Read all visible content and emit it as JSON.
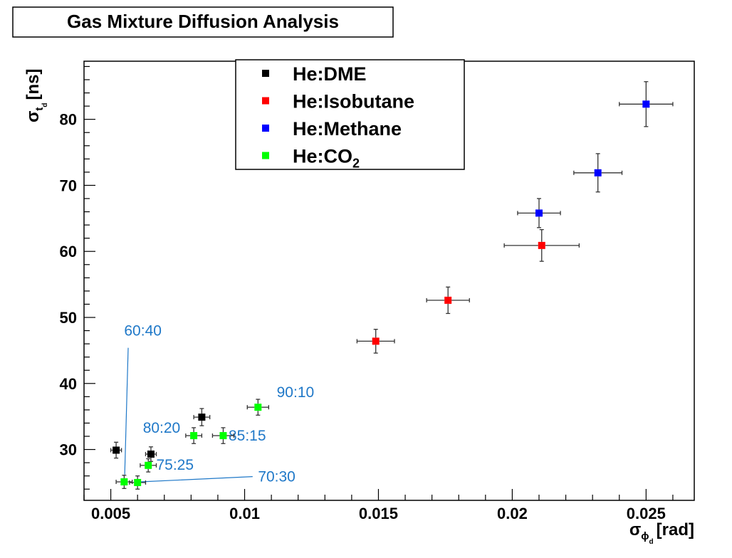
{
  "chart_data": {
    "type": "scatter",
    "title": "Gas Mixture Diffusion Analysis",
    "xlabel": {
      "symbol": "σ",
      "sub": "ϕ",
      "subsub": "d",
      "unit": "[rad]"
    },
    "ylabel": {
      "symbol": "σ",
      "sub": "t",
      "subsub": "d",
      "unit": "[ns]"
    },
    "xlim": [
      0.004,
      0.0268
    ],
    "ylim": [
      22.3,
      88.8
    ],
    "xticks": [
      {
        "value": 0.005,
        "label": "0.005"
      },
      {
        "value": 0.01,
        "label": "0.01"
      },
      {
        "value": 0.015,
        "label": "0.015"
      },
      {
        "value": 0.02,
        "label": "0.02"
      },
      {
        "value": 0.025,
        "label": "0.025"
      }
    ],
    "yticks": [
      {
        "value": 30,
        "label": "30"
      },
      {
        "value": 40,
        "label": "40"
      },
      {
        "value": 50,
        "label": "50"
      },
      {
        "value": 60,
        "label": "60"
      },
      {
        "value": 70,
        "label": "70"
      },
      {
        "value": 80,
        "label": "80"
      }
    ],
    "grid": false,
    "legend_position": "top-center",
    "series": [
      {
        "name": "He:DME",
        "color": "#000000",
        "points": [
          {
            "x": 0.0052,
            "y": 29.9,
            "xerr": 0.0002,
            "yerr": 1.2
          },
          {
            "x": 0.0065,
            "y": 29.3,
            "xerr": 0.0002,
            "yerr": 1.1
          },
          {
            "x": 0.0084,
            "y": 34.9,
            "xerr": 0.0003,
            "yerr": 1.3
          }
        ]
      },
      {
        "name": "He:Isobutane",
        "color": "#ff0000",
        "points": [
          {
            "x": 0.0149,
            "y": 46.4,
            "xerr": 0.0007,
            "yerr": 1.8
          },
          {
            "x": 0.0176,
            "y": 52.6,
            "xerr": 0.0008,
            "yerr": 2.0
          },
          {
            "x": 0.0211,
            "y": 60.9,
            "xerr": 0.0014,
            "yerr": 2.4
          }
        ]
      },
      {
        "name": "He:Methane",
        "color": "#0000ff",
        "points": [
          {
            "x": 0.021,
            "y": 65.8,
            "xerr": 0.0008,
            "yerr": 2.2
          },
          {
            "x": 0.0232,
            "y": 71.9,
            "xerr": 0.0009,
            "yerr": 2.9
          },
          {
            "x": 0.025,
            "y": 82.3,
            "xerr": 0.001,
            "yerr": 3.4
          }
        ]
      },
      {
        "name": "He:CO",
        "name_sub": "2",
        "color": "#00ff00",
        "points": [
          {
            "x": 0.0055,
            "y": 25.1,
            "xerr": 0.0003,
            "yerr": 1.0
          },
          {
            "x": 0.006,
            "y": 25.0,
            "xerr": 0.0003,
            "yerr": 1.0
          },
          {
            "x": 0.0064,
            "y": 27.6,
            "xerr": 0.0003,
            "yerr": 1.0
          },
          {
            "x": 0.0081,
            "y": 32.1,
            "xerr": 0.0003,
            "yerr": 1.2
          },
          {
            "x": 0.0092,
            "y": 32.1,
            "xerr": 0.0004,
            "yerr": 1.2
          },
          {
            "x": 0.0105,
            "y": 36.4,
            "xerr": 0.0004,
            "yerr": 1.2
          }
        ]
      }
    ],
    "annotations": [
      {
        "text": "60:40",
        "tx": 0.0055,
        "ty": 48.0,
        "lx1": 0.00565,
        "ly1": 45.4,
        "lx2": 0.00552,
        "ly2": 26.2
      },
      {
        "text": "70:30",
        "tx": 0.0105,
        "ty": 25.9,
        "lx1": 0.0103,
        "ly1": 25.9,
        "lx2": 0.0061,
        "ly2": 25.1
      },
      {
        "text": "75:25",
        "tx": 0.0067,
        "ty": 27.7
      },
      {
        "text": "80:20",
        "tx": 0.0062,
        "ty": 33.3
      },
      {
        "text": "85:15",
        "tx": 0.0094,
        "ty": 32.1
      },
      {
        "text": "90:10",
        "tx": 0.0112,
        "ty": 38.7
      }
    ],
    "annotation_color": "#1f78c8"
  }
}
